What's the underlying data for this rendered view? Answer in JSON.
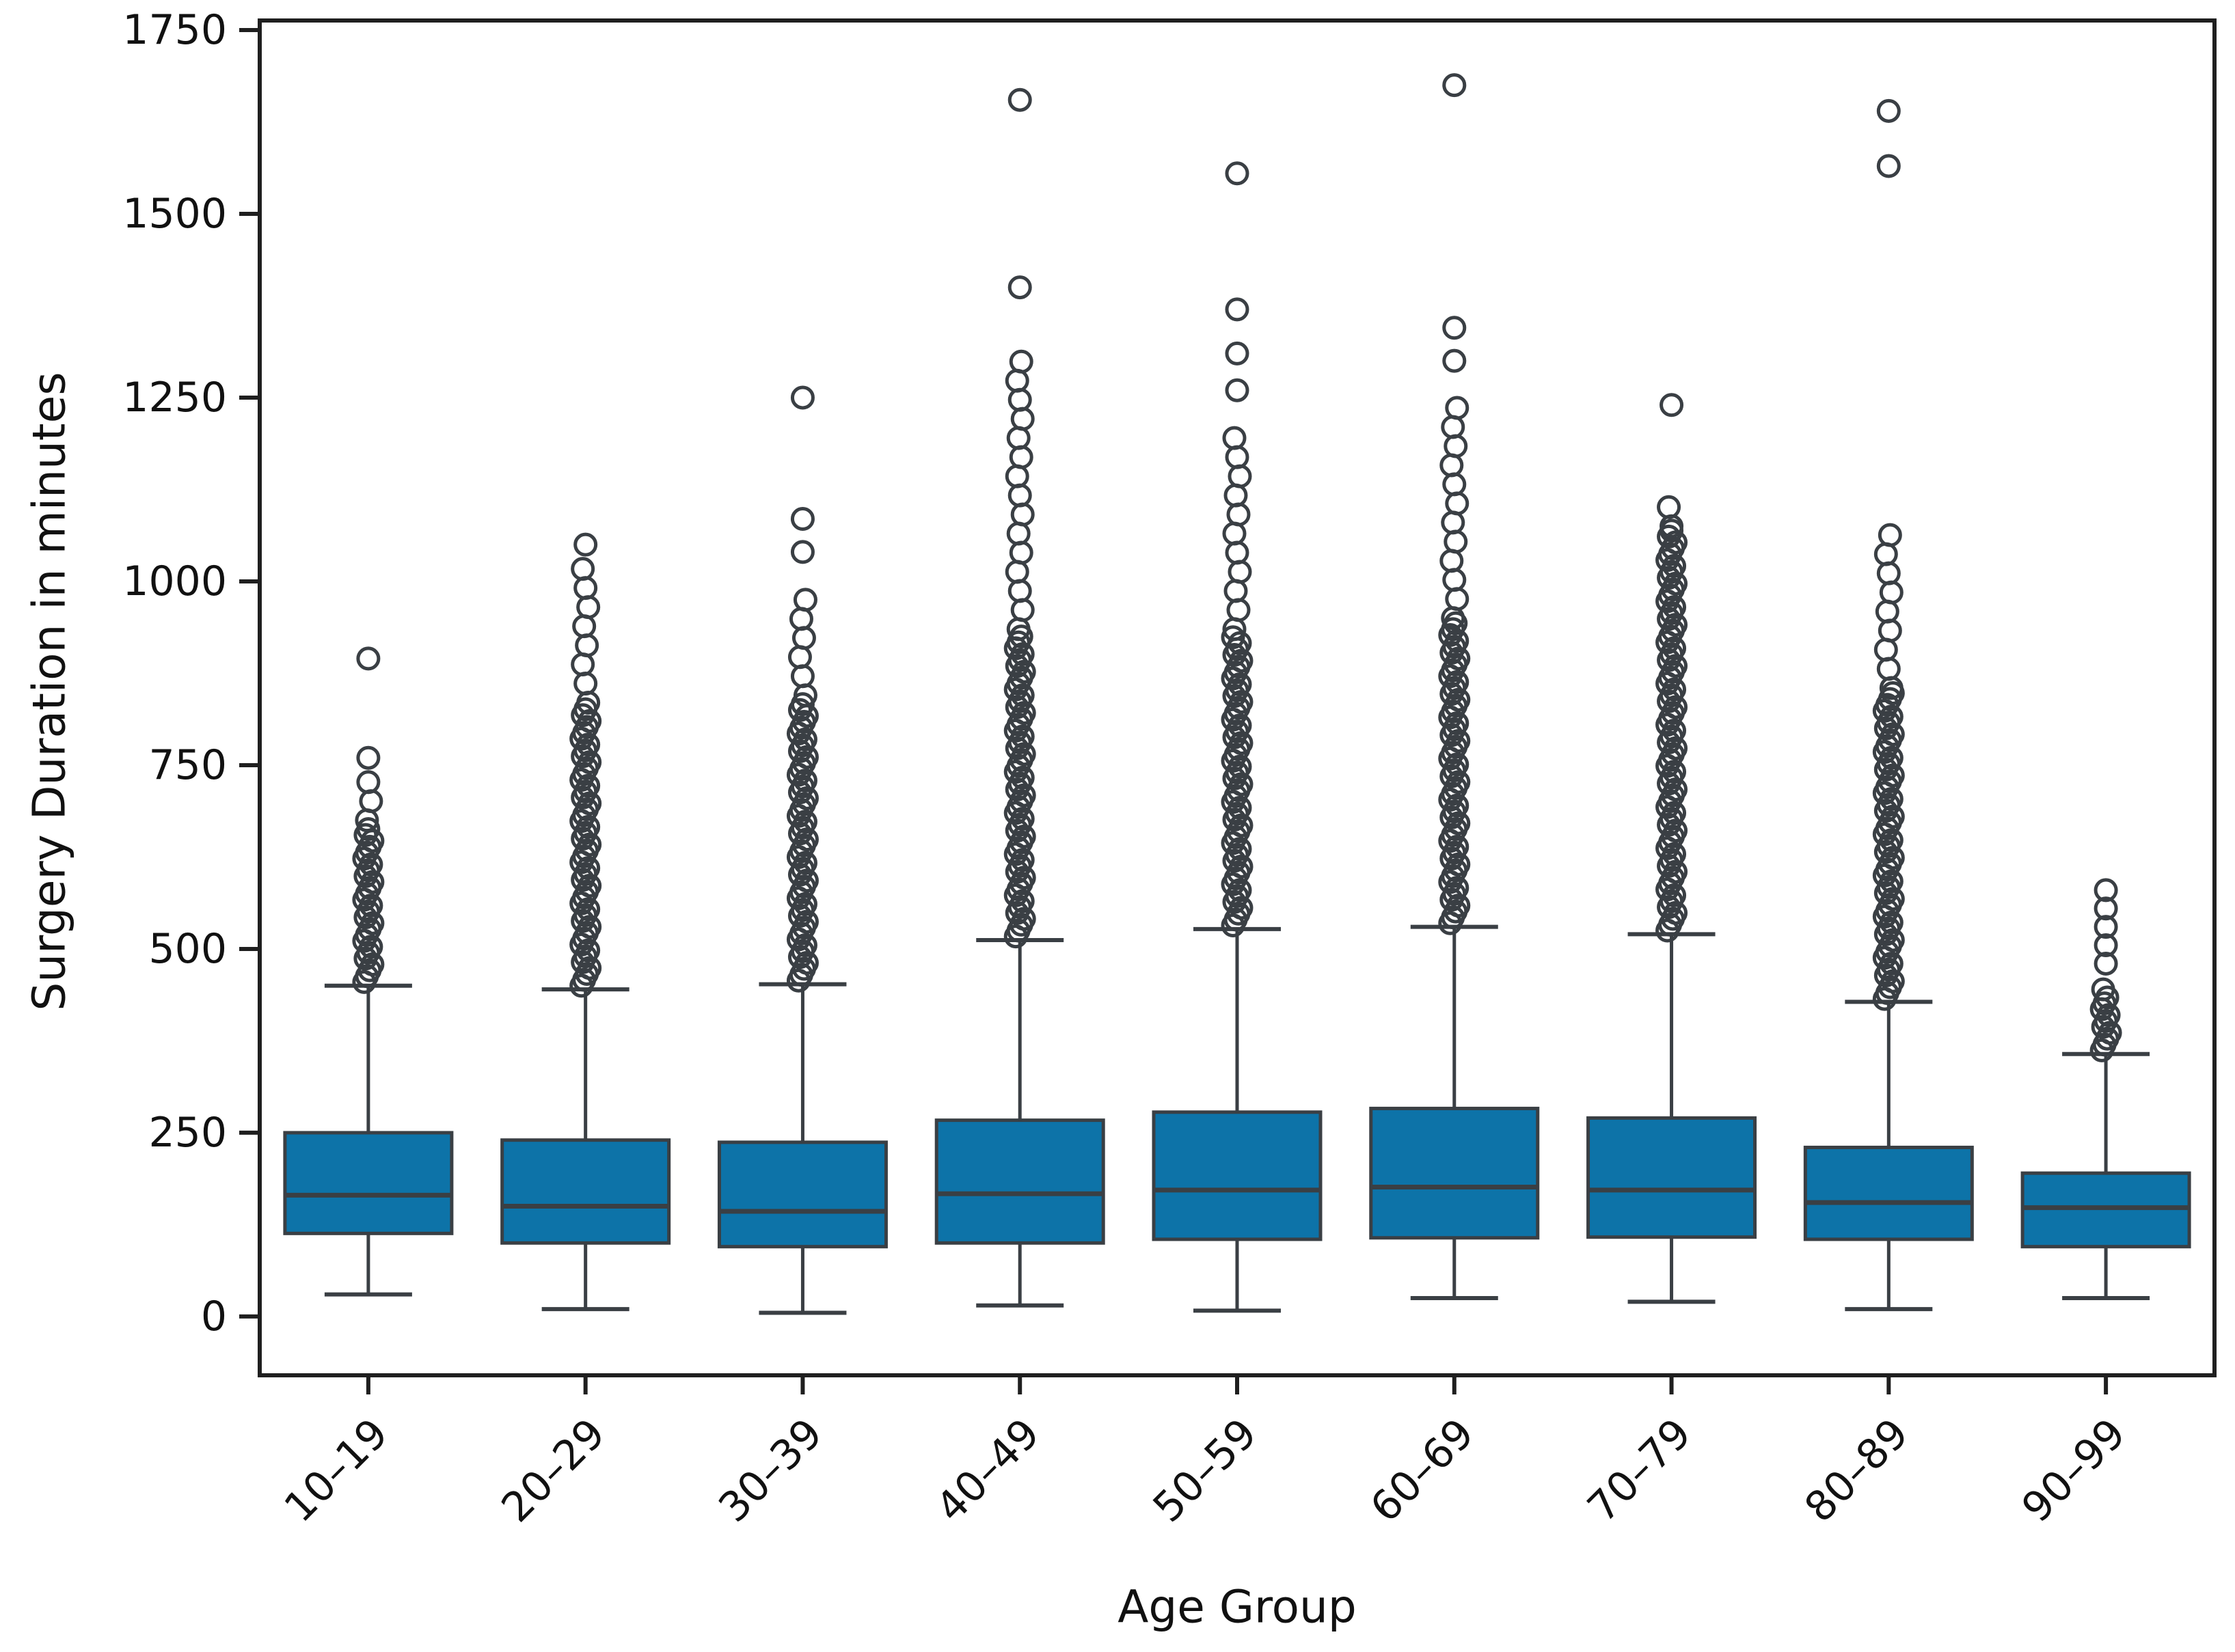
{
  "chart_data": {
    "type": "box",
    "title": "",
    "xlabel": "Age Group",
    "ylabel": "Surgery Duration in minutes",
    "legend": "none",
    "grid": false,
    "categories": [
      "10–19",
      "20–29",
      "30–39",
      "40–49",
      "50–59",
      "60–69",
      "70–79",
      "80–89",
      "90–99"
    ],
    "y_ticks": [
      0,
      250,
      500,
      750,
      1000,
      1250,
      1500,
      1750
    ],
    "ylim": [
      -80,
      1763
    ],
    "groups": [
      {
        "label": "10–19",
        "whisker_low": 30,
        "q1": 113,
        "median": 165,
        "q3": 250,
        "whisker_high": 450,
        "outliers_dense": [
          455,
          670
        ],
        "outliers_scattered": [
          675,
          730
        ],
        "outliers_isolated": [
          760,
          895
        ]
      },
      {
        "label": "20–29",
        "whisker_low": 10,
        "q1": 100,
        "median": 150,
        "q3": 240,
        "whisker_high": 445,
        "outliers_dense": [
          450,
          830
        ],
        "outliers_scattered": [
          835,
          1020
        ],
        "outliers_isolated": [
          1050
        ]
      },
      {
        "label": "30–39",
        "whisker_low": 5,
        "q1": 95,
        "median": 143,
        "q3": 237,
        "whisker_high": 452,
        "outliers_dense": [
          457,
          840
        ],
        "outliers_scattered": [
          845,
          990
        ],
        "outliers_isolated": [
          1040,
          1085,
          1250
        ]
      },
      {
        "label": "40–49",
        "whisker_low": 15,
        "q1": 100,
        "median": 167,
        "q3": 267,
        "whisker_high": 512,
        "outliers_dense": [
          517,
          930
        ],
        "outliers_scattered": [
          935,
          1310
        ],
        "outliers_isolated": [
          1400,
          1655
        ]
      },
      {
        "label": "50–59",
        "whisker_low": 8,
        "q1": 105,
        "median": 172,
        "q3": 278,
        "whisker_high": 527,
        "outliers_dense": [
          532,
          930
        ],
        "outliers_scattered": [
          935,
          1195
        ],
        "outliers_isolated": [
          1260,
          1310,
          1370,
          1555
        ]
      },
      {
        "label": "60–69",
        "whisker_low": 25,
        "q1": 107,
        "median": 176,
        "q3": 283,
        "whisker_high": 530,
        "outliers_dense": [
          535,
          945
        ],
        "outliers_scattered": [
          950,
          1240
        ],
        "outliers_isolated": [
          1300,
          1345,
          1675
        ]
      },
      {
        "label": "70–79",
        "whisker_low": 20,
        "q1": 108,
        "median": 172,
        "q3": 270,
        "whisker_high": 520,
        "outliers_dense": [
          525,
          1070
        ],
        "outliers_scattered": [
          1075,
          1115
        ],
        "outliers_isolated": [
          1240
        ]
      },
      {
        "label": "80–89",
        "whisker_low": 10,
        "q1": 105,
        "median": 155,
        "q3": 230,
        "whisker_high": 428,
        "outliers_dense": [
          432,
          850
        ],
        "outliers_scattered": [
          855,
          1085
        ],
        "outliers_isolated": [
          1565,
          1640
        ]
      },
      {
        "label": "90–99",
        "whisker_low": 25,
        "q1": 95,
        "median": 148,
        "q3": 195,
        "whisker_high": 357,
        "outliers_dense": [
          362,
          440
        ],
        "outliers_scattered": [
          445,
          470
        ],
        "outliers_isolated": [
          480,
          505,
          530,
          555,
          580
        ]
      }
    ],
    "style": {
      "box_fill": "#0d73a8",
      "line_color": "#3a3f44",
      "spine_color": "#1f1f1f",
      "tick_label_color": "#111111",
      "background": "#ffffff"
    }
  }
}
